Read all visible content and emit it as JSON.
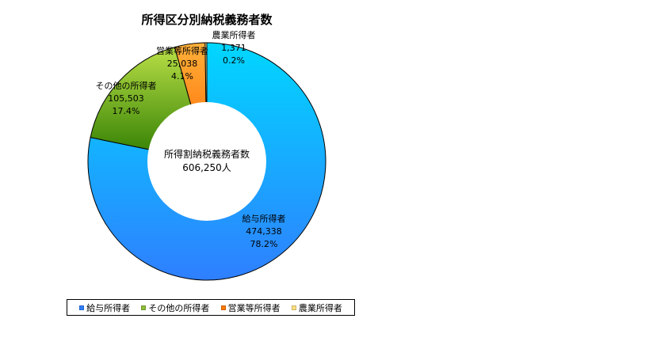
{
  "chart_data": {
    "type": "pie",
    "title": "所得区分別納税義務者数",
    "center_label_line1": "所得割納税義務者数",
    "center_label_line2": "606,250人",
    "categories": [
      "給与所得者",
      "その他の所得者",
      "営業等所得者",
      "農業所得者"
    ],
    "values": [
      474338,
      105503,
      25038,
      1371
    ],
    "percentages": [
      "78.2%",
      "17.4%",
      "4.1%",
      "0.2%"
    ],
    "value_labels": [
      "474,338",
      "105,503",
      "25,038",
      "1,371"
    ],
    "colors": [
      "#2f7fff",
      "#8fbe3a",
      "#ff7a00",
      "#ffe082"
    ],
    "legend_position": "bottom"
  }
}
